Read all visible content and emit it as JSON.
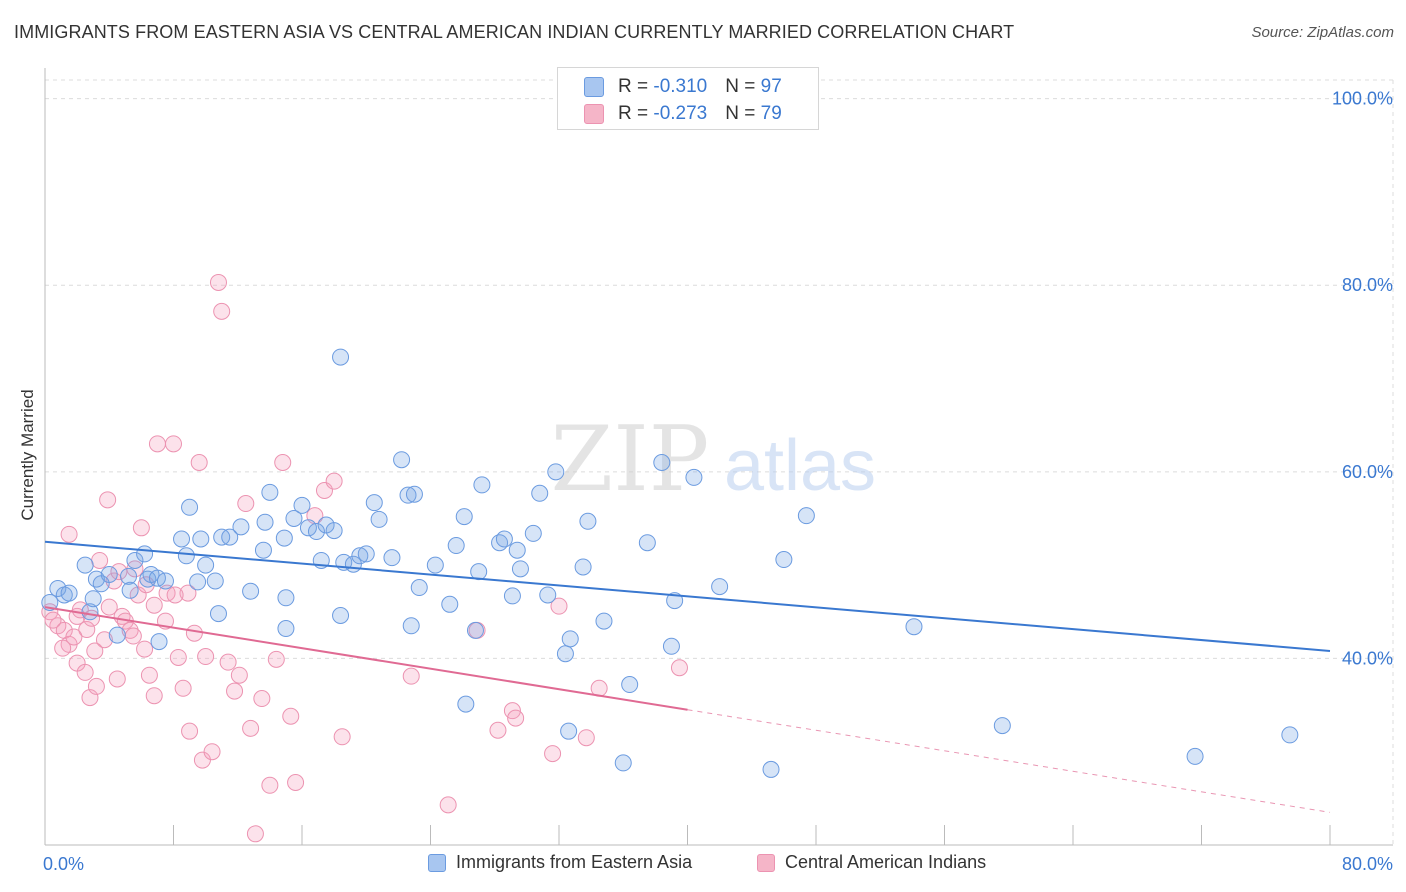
{
  "title": "IMMIGRANTS FROM EASTERN ASIA VS CENTRAL AMERICAN INDIAN CURRENTLY MARRIED CORRELATION CHART",
  "source": "Source: ZipAtlas.com",
  "watermark": {
    "zip": "ZIP",
    "atlas": "atlas"
  },
  "legend_top": [
    {
      "r_label": "R = ",
      "r_value": "-0.310",
      "n_label": "N = ",
      "n_value": "97",
      "color": "#a8c6f0"
    },
    {
      "r_label": "R = ",
      "r_value": "-0.273",
      "n_label": "N = ",
      "n_value": "79",
      "color": "#f5b5c8"
    }
  ],
  "legend_bottom": [
    {
      "label": "Immigrants from Eastern Asia",
      "color": "#a8c6f0",
      "stroke": "#5b8fd9"
    },
    {
      "label": "Central American Indians",
      "color": "#f5b5c8",
      "stroke": "#e07a9b"
    }
  ],
  "colors": {
    "blue": "#3a78d0",
    "blue_fill": "rgba(120,165,230,0.30)",
    "blue_stroke": "#6b9be0",
    "pink": "#e06a93",
    "pink_fill": "rgba(245,160,190,0.30)",
    "pink_stroke": "#ec93b1",
    "accent_text": "#3a78d0"
  },
  "chart_data": {
    "type": "scatter",
    "xlabel": "",
    "ylabel": "Currently Married",
    "x_tick_labels": [
      "0.0%",
      "80.0%"
    ],
    "y_tick_labels": [
      "40.0%",
      "60.0%",
      "80.0%",
      "100.0%"
    ],
    "y_ticks": [
      40,
      60,
      80,
      100
    ],
    "xlim": [
      0,
      80
    ],
    "ylim": [
      20,
      102
    ],
    "grid": true,
    "series": [
      {
        "name": "Immigrants from Eastern Asia",
        "trend": {
          "x0": 0,
          "y0": 52.5,
          "x1": 80,
          "y1": 40.8,
          "dashed_from": null
        },
        "points": [
          [
            0.3,
            46
          ],
          [
            0.8,
            47.5
          ],
          [
            1.2,
            46.8
          ],
          [
            1.5,
            47
          ],
          [
            2.5,
            50
          ],
          [
            3.2,
            48.5
          ],
          [
            3.5,
            48
          ],
          [
            2.8,
            45
          ],
          [
            4,
            49
          ],
          [
            5.2,
            48.8
          ],
          [
            5.3,
            47.3
          ],
          [
            5.6,
            50.5
          ],
          [
            6.4,
            48.5
          ],
          [
            6.6,
            49
          ],
          [
            7,
            48.6
          ],
          [
            7.5,
            48.3
          ],
          [
            8.5,
            52.8
          ],
          [
            8.8,
            51
          ],
          [
            9,
            56.2
          ],
          [
            9.7,
            52.8
          ],
          [
            10,
            50
          ],
          [
            10.6,
            48.3
          ],
          [
            11,
            53
          ],
          [
            11.5,
            53
          ],
          [
            12.2,
            54.1
          ],
          [
            13.6,
            51.6
          ],
          [
            13.7,
            54.6
          ],
          [
            14,
            57.8
          ],
          [
            14.9,
            52.9
          ],
          [
            15.5,
            55
          ],
          [
            16,
            56.4
          ],
          [
            16.4,
            54
          ],
          [
            16.9,
            53.6
          ],
          [
            17.5,
            54.3
          ],
          [
            18,
            53.7
          ],
          [
            17.2,
            50.5
          ],
          [
            18.6,
            50.3
          ],
          [
            19.2,
            50.1
          ],
          [
            19.6,
            51
          ],
          [
            20,
            51.2
          ],
          [
            20.5,
            56.7
          ],
          [
            20.8,
            54.9
          ],
          [
            21.6,
            50.8
          ],
          [
            22.2,
            61.3
          ],
          [
            22.6,
            57.5
          ],
          [
            23,
            57.6
          ],
          [
            23.3,
            47.6
          ],
          [
            24.3,
            50
          ],
          [
            25.6,
            52.1
          ],
          [
            26.1,
            55.2
          ],
          [
            27,
            49.3
          ],
          [
            27.2,
            58.6
          ],
          [
            28.3,
            52.4
          ],
          [
            28.6,
            52.8
          ],
          [
            29.4,
            51.6
          ],
          [
            29.6,
            49.6
          ],
          [
            30.4,
            53.4
          ],
          [
            30.8,
            57.7
          ],
          [
            31.3,
            46.8
          ],
          [
            31.8,
            60
          ],
          [
            32.7,
            42.1
          ],
          [
            32.4,
            40.5
          ],
          [
            33.5,
            49.8
          ],
          [
            33.8,
            54.7
          ],
          [
            34.8,
            44
          ],
          [
            36.4,
            37.2
          ],
          [
            37.5,
            52.4
          ],
          [
            38.4,
            61
          ],
          [
            39.2,
            46.2
          ],
          [
            40.4,
            59.4
          ],
          [
            42,
            47.7
          ],
          [
            45.2,
            28.1
          ],
          [
            46,
            50.6
          ],
          [
            47.4,
            55.3
          ],
          [
            9.5,
            48.2
          ],
          [
            10.8,
            44.8
          ],
          [
            15,
            46.5
          ],
          [
            15,
            43.2
          ],
          [
            18.4,
            44.6
          ],
          [
            22.8,
            43.5
          ],
          [
            25.2,
            45.8
          ],
          [
            26.2,
            35.1
          ],
          [
            26.8,
            43
          ],
          [
            29.1,
            46.7
          ],
          [
            32.6,
            32.2
          ],
          [
            36,
            28.8
          ],
          [
            39,
            41.3
          ],
          [
            54.1,
            43.4
          ],
          [
            59.6,
            32.8
          ],
          [
            71.6,
            29.5
          ],
          [
            77.5,
            31.8
          ],
          [
            7.1,
            41.8
          ],
          [
            18.4,
            72.3
          ],
          [
            3,
            46.4
          ],
          [
            4.5,
            42.5
          ],
          [
            6.2,
            51.2
          ],
          [
            12.8,
            47.2
          ]
        ],
        "point_radius": 8
      },
      {
        "name": "Central American Indians",
        "trend": {
          "x0": 0,
          "y0": 45.5,
          "x1": 80,
          "y1": 23.5,
          "dashed_from": 40
        },
        "points": [
          [
            0.3,
            45
          ],
          [
            0.8,
            43.5
          ],
          [
            1.2,
            43
          ],
          [
            1.5,
            41.5
          ],
          [
            2,
            44.5
          ],
          [
            2,
            39.5
          ],
          [
            2.5,
            38.5
          ],
          [
            2.8,
            35.8
          ],
          [
            3.2,
            37
          ],
          [
            3.4,
            50.5
          ],
          [
            3.7,
            42
          ],
          [
            4,
            45.5
          ],
          [
            4.3,
            48.3
          ],
          [
            4.5,
            37.8
          ],
          [
            4.8,
            44.5
          ],
          [
            5,
            44
          ],
          [
            5.3,
            43
          ],
          [
            5.6,
            49.6
          ],
          [
            5.8,
            46.8
          ],
          [
            6,
            54
          ],
          [
            6.2,
            41
          ],
          [
            6.5,
            38.2
          ],
          [
            6.8,
            36
          ],
          [
            7,
            63
          ],
          [
            7.5,
            44
          ],
          [
            8,
            63
          ],
          [
            8.3,
            40.1
          ],
          [
            8.6,
            36.8
          ],
          [
            8.9,
            47
          ],
          [
            9,
            32.2
          ],
          [
            9.3,
            42.7
          ],
          [
            9.6,
            61
          ],
          [
            9.8,
            29.1
          ],
          [
            10,
            40.2
          ],
          [
            10.4,
            30
          ],
          [
            10.8,
            80.3
          ],
          [
            11,
            77.2
          ],
          [
            11.4,
            39.6
          ],
          [
            11.8,
            36.5
          ],
          [
            12.1,
            38.2
          ],
          [
            12.5,
            56.6
          ],
          [
            12.8,
            32.5
          ],
          [
            13.1,
            21.2
          ],
          [
            13.5,
            35.7
          ],
          [
            14,
            26.4
          ],
          [
            14.4,
            39.9
          ],
          [
            14.8,
            61
          ],
          [
            15.3,
            33.8
          ],
          [
            15.6,
            26.7
          ],
          [
            16.8,
            55.3
          ],
          [
            17.4,
            58
          ],
          [
            18,
            59
          ],
          [
            18.5,
            31.6
          ],
          [
            22.8,
            38.1
          ],
          [
            25.1,
            24.3
          ],
          [
            26.9,
            43
          ],
          [
            28.2,
            32.3
          ],
          [
            29.1,
            34.4
          ],
          [
            29.3,
            33.6
          ],
          [
            31.6,
            29.8
          ],
          [
            32,
            45.6
          ],
          [
            33.7,
            31.5
          ],
          [
            34.5,
            36.8
          ],
          [
            39.5,
            39
          ],
          [
            1.5,
            53.3
          ],
          [
            2.2,
            45.2
          ],
          [
            2.6,
            43.1
          ],
          [
            3.1,
            40.8
          ],
          [
            3.9,
            57
          ],
          [
            4.6,
            49.3
          ],
          [
            5.5,
            42.4
          ],
          [
            6.8,
            45.7
          ],
          [
            7.6,
            47
          ],
          [
            8.1,
            46.8
          ],
          [
            2.9,
            44.3
          ],
          [
            1.8,
            42.3
          ],
          [
            1.1,
            41.1
          ],
          [
            0.5,
            44.1
          ],
          [
            6.3,
            47.9
          ]
        ],
        "point_radius": 8
      }
    ]
  }
}
